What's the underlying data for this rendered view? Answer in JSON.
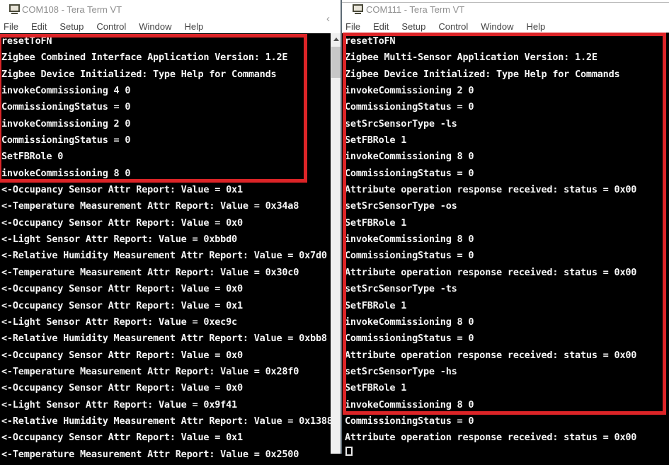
{
  "colors": {
    "highlight_red": "#dc2427",
    "terminal_bg": "#000000",
    "terminal_text": "#f5f5f5",
    "chrome_bg": "#ffffff"
  },
  "left_window": {
    "title": "COM108 - Tera Term VT",
    "app_icon": "VT",
    "menu": [
      {
        "name": "menu-item-file",
        "label": "File"
      },
      {
        "name": "menu-item-edit",
        "label": "Edit"
      },
      {
        "name": "menu-item-setup",
        "label": "Setup"
      },
      {
        "name": "menu-item-control",
        "label": "Control"
      },
      {
        "name": "menu-item-window",
        "label": "Window"
      },
      {
        "name": "menu-item-help",
        "label": "Help"
      }
    ],
    "terminal_lines": [
      "resetToFN",
      "Zigbee Combined Interface Application Version: 1.2E",
      "Zigbee Device Initialized: Type Help for Commands",
      "invokeCommissioning 4 0",
      "CommissioningStatus = 0",
      "invokeCommissioning 2 0",
      "CommissioningStatus = 0",
      "SetFBRole 0",
      "invokeCommissioning 8 0",
      "<-Occupancy Sensor Attr Report: Value = 0x1",
      "<-Temperature Measurement Attr Report: Value = 0x34a8",
      "<-Occupancy Sensor Attr Report: Value = 0x0",
      "<-Light Sensor Attr Report: Value = 0xbbd0",
      "<-Relative Humidity Measurement Attr Report: Value = 0x7d0",
      "<-Temperature Measurement Attr Report: Value = 0x30c0",
      "<-Occupancy Sensor Attr Report: Value = 0x0",
      "<-Occupancy Sensor Attr Report: Value = 0x1",
      "<-Light Sensor Attr Report: Value = 0xec9c",
      "<-Relative Humidity Measurement Attr Report: Value = 0xbb8",
      "<-Occupancy Sensor Attr Report: Value = 0x0",
      "<-Temperature Measurement Attr Report: Value = 0x28f0",
      "<-Occupancy Sensor Attr Report: Value = 0x0",
      "<-Light Sensor Attr Report: Value = 0x9f41",
      "<-Relative Humidity Measurement Attr Report: Value = 0x1388",
      "<-Occupancy Sensor Attr Report: Value = 0x1",
      "<-Temperature Measurement Attr Report: Value = 0x2500"
    ]
  },
  "right_window": {
    "title": "COM111 - Tera Term VT",
    "app_icon": "VT",
    "menu": [
      {
        "name": "menu-item-file",
        "label": "File"
      },
      {
        "name": "menu-item-edit",
        "label": "Edit"
      },
      {
        "name": "menu-item-setup",
        "label": "Setup"
      },
      {
        "name": "menu-item-control",
        "label": "Control"
      },
      {
        "name": "menu-item-window",
        "label": "Window"
      },
      {
        "name": "menu-item-help",
        "label": "Help"
      }
    ],
    "terminal_lines": [
      "resetToFN",
      "Zigbee Multi-Sensor Application Version: 1.2E",
      "Zigbee Device Initialized: Type Help for Commands",
      "invokeCommissioning 2 0",
      "CommissioningStatus = 0",
      "setSrcSensorType -ls",
      "SetFBRole 1",
      "invokeCommissioning 8 0",
      "CommissioningStatus = 0",
      "Attribute operation response received: status = 0x00",
      "setSrcSensorType -os",
      "SetFBRole 1",
      "invokeCommissioning 8 0",
      "CommissioningStatus = 0",
      "Attribute operation response received: status = 0x00",
      "setSrcSensorType -ts",
      "SetFBRole 1",
      "invokeCommissioning 8 0",
      "CommissioningStatus = 0",
      "Attribute operation response received: status = 0x00",
      "setSrcSensorType -hs",
      "SetFBRole 1",
      "invokeCommissioning 8 0",
      "CommissioningStatus = 0",
      "Attribute operation response received: status = 0x00"
    ]
  }
}
